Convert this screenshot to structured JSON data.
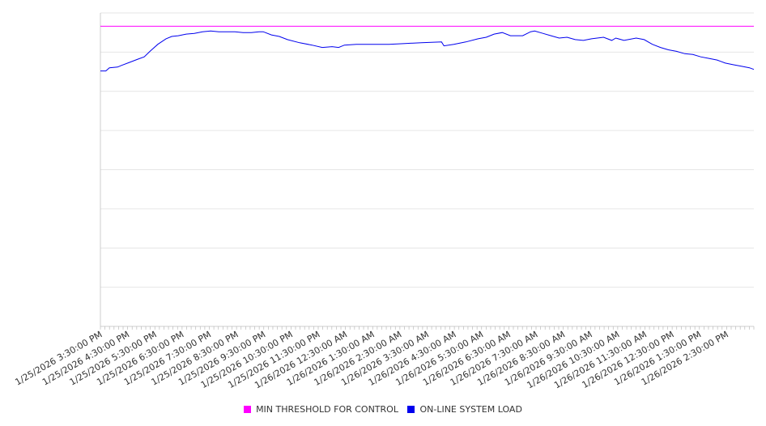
{
  "chart_data": {
    "type": "line",
    "title": "",
    "xlabel": "",
    "ylabel": "",
    "x_unit": "hours since 1/25/2026 3:30:00 PM",
    "xlim": [
      0,
      24
    ],
    "ylim": [
      0,
      400
    ],
    "grid": true,
    "y_gridlines": 8,
    "legend_position": "bottom",
    "x_tick_labels": [
      "1/25/2026 3:30:00 PM",
      "1/25/2026 4:30:00 PM",
      "1/25/2026 5:30:00 PM",
      "1/25/2026 6:30:00 PM",
      "1/25/2026 7:30:00 PM",
      "1/25/2026 8:30:00 PM",
      "1/25/2026 9:30:00 PM",
      "1/25/2026 10:30:00 PM",
      "1/25/2026 11:30:00 PM",
      "1/26/2026 12:30:00 AM",
      "1/26/2026 1:30:00 AM",
      "1/26/2026 2:30:00 AM",
      "1/26/2026 3:30:00 AM",
      "1/26/2026 4:30:00 AM",
      "1/26/2026 5:30:00 AM",
      "1/26/2026 6:30:00 AM",
      "1/26/2026 7:30:00 AM",
      "1/26/2026 8:30:00 AM",
      "1/26/2026 9:30:00 AM",
      "1/26/2026 10:30:00 AM",
      "1/26/2026 11:30:00 AM",
      "1/26/2026 12:30:00 PM",
      "1/26/2026 1:30:00 PM",
      "1/26/2026 2:30:00 PM"
    ],
    "series": [
      {
        "name": "MIN THRESHOLD FOR CONTROL",
        "color": "#ff00ff",
        "x": [
          0,
          24
        ],
        "y": [
          383,
          383
        ]
      },
      {
        "name": "ON-LINE SYSTEM LOAD",
        "color": "#0000ee",
        "x": [
          0,
          0.2,
          0.33,
          0.63,
          0.77,
          1.07,
          1.37,
          1.61,
          1.82,
          2.11,
          2.41,
          2.62,
          2.86,
          3.15,
          3.45,
          3.75,
          4.05,
          4.35,
          4.64,
          4.94,
          5.24,
          5.54,
          5.83,
          5.98,
          6.28,
          6.57,
          6.87,
          7.32,
          7.77,
          8.15,
          8.51,
          8.75,
          8.96,
          9.4,
          10.0,
          10.6,
          11.19,
          11.79,
          12.53,
          12.62,
          12.98,
          13.42,
          13.87,
          14.17,
          14.46,
          14.76,
          15.06,
          15.51,
          15.8,
          15.95,
          16.25,
          16.55,
          16.85,
          17.14,
          17.44,
          17.74,
          18.04,
          18.48,
          18.78,
          18.93,
          19.23,
          19.68,
          19.97,
          20.27,
          20.57,
          20.86,
          21.16,
          21.46,
          21.76,
          22.05,
          22.35,
          22.65,
          22.95,
          23.24,
          23.54,
          23.84,
          24
        ],
        "y": [
          326,
          326,
          330,
          331,
          333,
          337,
          341,
          344,
          351,
          360,
          367,
          370,
          371,
          373,
          374,
          376,
          377,
          376,
          376,
          376,
          375,
          375,
          376,
          376,
          372,
          370,
          366,
          362,
          359,
          356,
          357,
          356,
          359,
          360,
          360,
          360,
          361,
          362,
          363,
          358,
          360,
          363,
          367,
          369,
          373,
          375,
          371,
          371,
          376,
          377,
          374,
          371,
          368,
          369,
          366,
          365,
          367,
          369,
          365,
          368,
          365,
          368,
          366,
          360,
          356,
          353,
          351,
          348,
          347,
          344,
          342,
          340,
          336,
          334,
          332,
          330,
          328
        ]
      }
    ]
  }
}
